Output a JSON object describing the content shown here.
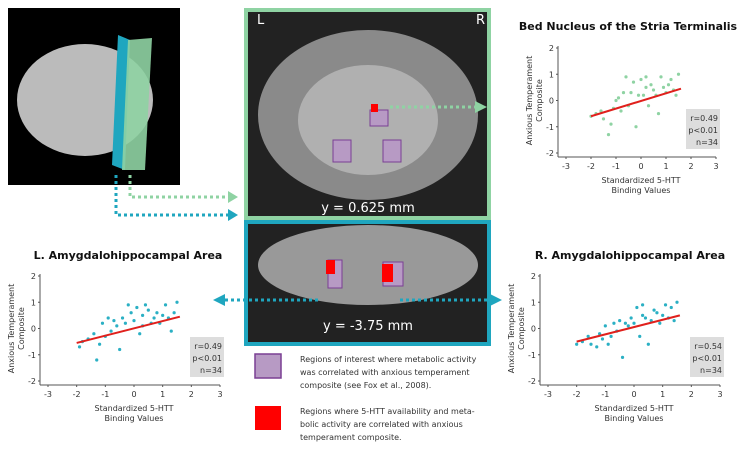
{
  "chart_data": [
    {
      "type": "scatter",
      "title": "Bed Nucleus of the Stria Terminalis",
      "xlabel": [
        "Standardized 5-HTT",
        "Binding Values"
      ],
      "ylabel": [
        "Anxious Temperament",
        "Composite"
      ],
      "xlim": [
        -3,
        3
      ],
      "xticks": [
        -3,
        -2,
        -1,
        0,
        1,
        2,
        3
      ],
      "ylim": [
        -2,
        2
      ],
      "yticks": [
        -2,
        -1,
        0,
        1,
        2
      ],
      "color": "#8fd3a3",
      "x": [
        -2,
        -1.8,
        -1.6,
        -1.5,
        -1.3,
        -1.2,
        -1.1,
        -1,
        -0.9,
        -0.8,
        -0.7,
        -0.6,
        -0.5,
        -0.4,
        -0.3,
        -0.2,
        -0.1,
        0,
        0.1,
        0.2,
        0.2,
        0.3,
        0.4,
        0.5,
        0.6,
        0.7,
        0.8,
        0.9,
        1,
        1.1,
        1.2,
        1.3,
        1.4,
        1.5
      ],
      "y": [
        -0.6,
        -0.5,
        -0.4,
        -0.7,
        -1.3,
        -0.9,
        -0.3,
        0,
        0.1,
        -0.4,
        0.3,
        0.9,
        -0.2,
        0.3,
        0.7,
        -1,
        0.2,
        0.8,
        0.2,
        0.5,
        0.9,
        -0.2,
        0.6,
        0.4,
        0.2,
        -0.5,
        0.9,
        0.5,
        0.3,
        0.6,
        0.8,
        0.4,
        0.2,
        1
      ],
      "trend": {
        "x": [
          -2,
          1.6
        ],
        "y": [
          -0.6,
          0.45
        ],
        "color": "#e0201c"
      },
      "annotations": [
        "r=0.49",
        "p<0.01",
        "n=34"
      ]
    },
    {
      "type": "scatter",
      "title": "L. Amygdalohippocampal Area",
      "xlabel": [
        "Standardized 5-HTT",
        "Binding Values"
      ],
      "ylabel": [
        "Anxious Temperament",
        "Composite"
      ],
      "xlim": [
        -3,
        3
      ],
      "xticks": [
        -3,
        -2,
        -1,
        0,
        1,
        2,
        3
      ],
      "ylim": [
        -2,
        2
      ],
      "yticks": [
        -2,
        -1,
        0,
        1,
        2
      ],
      "color": "#2bb0c4",
      "x": [
        -1.9,
        -1.8,
        -1.6,
        -1.4,
        -1.3,
        -1.2,
        -1.1,
        -1,
        -0.9,
        -0.8,
        -0.7,
        -0.6,
        -0.5,
        -0.4,
        -0.3,
        -0.2,
        -0.1,
        0,
        0.1,
        0.2,
        0.3,
        0.3,
        0.4,
        0.5,
        0.6,
        0.7,
        0.8,
        0.9,
        1,
        1.1,
        1.2,
        1.3,
        1.4,
        1.5
      ],
      "y": [
        -0.7,
        -0.5,
        -0.4,
        -0.2,
        -1.2,
        -0.6,
        0.2,
        -0.3,
        0.4,
        -0.1,
        0.3,
        0.1,
        -0.8,
        0.4,
        0.2,
        0.9,
        0.6,
        0.3,
        0.8,
        -0.2,
        0.1,
        0.5,
        0.9,
        0.7,
        0.2,
        0.4,
        0.6,
        0.2,
        0.5,
        0.9,
        0.4,
        -0.1,
        0.6,
        1
      ],
      "trend": {
        "x": [
          -2,
          1.6
        ],
        "y": [
          -0.55,
          0.45
        ],
        "color": "#e0201c"
      },
      "annotations": [
        "r=0.49",
        "p<0.01",
        "n=34"
      ]
    },
    {
      "type": "scatter",
      "title": "R. Amygdalohippocampal Area",
      "xlabel": [
        "Standardized 5-HTT",
        "Binding Values"
      ],
      "ylabel": [
        "Anxious Temperament",
        "Composite"
      ],
      "xlim": [
        -3,
        3
      ],
      "xticks": [
        -3,
        -2,
        -1,
        0,
        1,
        2,
        3
      ],
      "ylim": [
        -2,
        2
      ],
      "yticks": [
        -2,
        -1,
        0,
        1,
        2
      ],
      "color": "#2bb0c4",
      "x": [
        -2,
        -1.8,
        -1.6,
        -1.5,
        -1.3,
        -1.2,
        -1.1,
        -1,
        -0.9,
        -0.8,
        -0.7,
        -0.6,
        -0.5,
        -0.4,
        -0.3,
        -0.2,
        -0.1,
        0,
        0.1,
        0.2,
        0.3,
        0.3,
        0.4,
        0.5,
        0.6,
        0.7,
        0.8,
        0.9,
        1,
        1.1,
        1.2,
        1.3,
        1.4,
        1.5
      ],
      "y": [
        -0.6,
        -0.5,
        -0.3,
        -0.6,
        -0.7,
        -0.2,
        -0.4,
        0.1,
        -0.6,
        -0.3,
        0.2,
        -0.1,
        0.3,
        -1.1,
        0.2,
        0.1,
        0.4,
        0.2,
        0.8,
        -0.3,
        0.5,
        0.9,
        0.4,
        -0.6,
        0.3,
        0.7,
        0.6,
        0.2,
        0.5,
        0.9,
        0.4,
        0.8,
        0.3,
        1
      ],
      "trend": {
        "x": [
          -2,
          1.6
        ],
        "y": [
          -0.5,
          0.5
        ],
        "color": "#e0201c"
      },
      "annotations": [
        "r=0.54",
        "p<0.01",
        "n=34"
      ]
    }
  ],
  "figure": {
    "top_left": "L",
    "top_right": "R",
    "top_slice": "y = 0.625 mm",
    "bottom_slice": "y = -3.75 mm",
    "legend": [
      {
        "color": "#b79ac4",
        "lines": [
          "Regions of interest where metabolic activity",
          "was correlated with anxious temperament",
          "composite (see Fox et al., 2008)."
        ]
      },
      {
        "color": "#ff0000",
        "lines": [
          "Regions where 5-HTT availability and meta-",
          "bolic activity are correlated with anxious",
          "temperament composite."
        ]
      }
    ]
  }
}
